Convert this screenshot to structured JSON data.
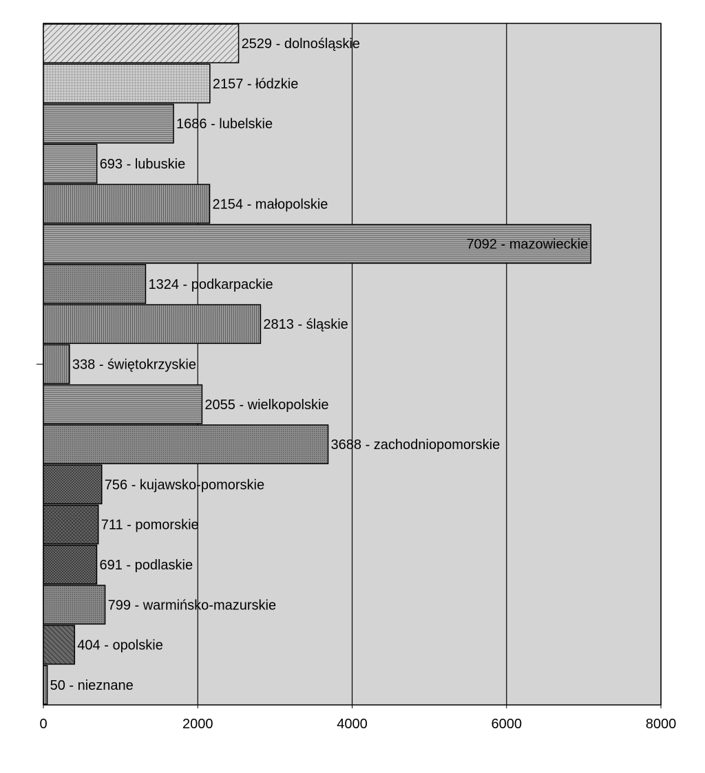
{
  "chart_data": {
    "type": "bar",
    "orientation": "horizontal",
    "categories": [
      "dolnośląskie",
      "łódzkie",
      "lubelskie",
      "lubuskie",
      "małopolskie",
      "mazowieckie",
      "podkarpackie",
      "śląskie",
      "świętokrzyskie",
      "wielkopolskie",
      "zachodniopomorskie",
      "kujawsko-pomorskie",
      "pomorskie",
      "podlaskie",
      "warmińsko-mazurskie",
      "opolskie",
      "nieznane"
    ],
    "values": [
      2529,
      2157,
      1686,
      693,
      2154,
      7092,
      1324,
      2813,
      338,
      2055,
      3688,
      756,
      711,
      691,
      799,
      404,
      50
    ],
    "data_labels": [
      "2529 - dolnośląskie",
      "2157 - łódzkie",
      "1686 - lubelskie",
      "693 - lubuskie",
      "2154 - małopolskie",
      "7092 - mazowieckie",
      "1324 - podkarpackie",
      "2813 - śląskie",
      "338 - świętokrzyskie",
      "2055 - wielkopolskie",
      "3688 - zachodniopomorskie",
      "756 - kujawsko-pomorskie",
      "711 - pomorskie",
      "691 - podlaskie",
      "799 - warmińsko-mazurskie",
      "404 - opolskie",
      "50 -    nieznane"
    ],
    "xlim": [
      0,
      8000
    ],
    "x_ticks": [
      0,
      2000,
      4000,
      6000,
      8000
    ],
    "x_tick_labels": [
      "0",
      "2000",
      "4000",
      "6000",
      "8000"
    ],
    "title": "",
    "xlabel": "",
    "ylabel": "",
    "grid": "vertical",
    "legend": "none",
    "colors": {
      "plot_background": "#d4d4d4",
      "gridline": "#000000",
      "bar_outline": "#000000",
      "bar_fills": [
        "#c8c8c8",
        "#b4b4b4",
        "#8c8c8c",
        "#a0a0a0",
        "#909090",
        "#8a8a8a",
        "#888888",
        "#7e7e7e",
        "#7a7a7a",
        "#6a6a6a",
        "#6e6e6e",
        "#727272",
        "#5a5a5a",
        "#505050",
        "#4e4e4e",
        "#5c5c5c",
        "#808080"
      ]
    }
  }
}
